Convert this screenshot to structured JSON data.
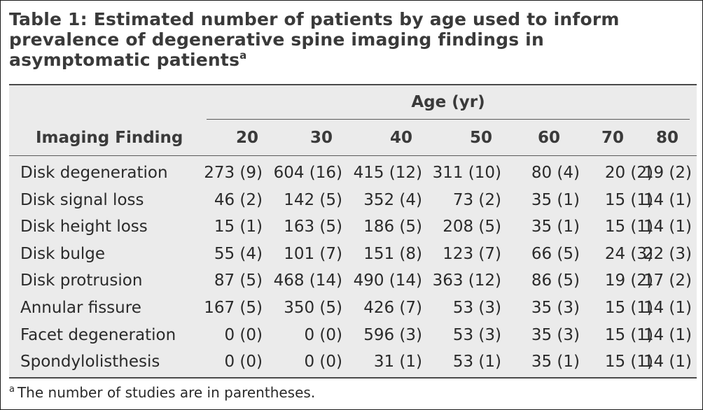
{
  "title": {
    "text": "Table 1: Estimated number of patients by age used to inform prevalence of degenerative spine imaging findings in asymptomatic patients",
    "superscript": "a"
  },
  "table": {
    "group_header": "Age (yr)",
    "first_column_header": "Imaging Finding",
    "age_columns": [
      "20",
      "30",
      "40",
      "50",
      "60",
      "70",
      "80"
    ],
    "rows": [
      {
        "finding": "Disk degeneration",
        "values": [
          "273 (9)",
          "604 (16)",
          "415 (12)",
          "311 (10)",
          "80 (4)",
          "20 (2)",
          "19 (2)"
        ]
      },
      {
        "finding": "Disk signal loss",
        "values": [
          "46 (2)",
          "142 (5)",
          "352 (4)",
          "73 (2)",
          "35 (1)",
          "15 (1)",
          "14 (1)"
        ]
      },
      {
        "finding": "Disk height loss",
        "values": [
          "15 (1)",
          "163 (5)",
          "186 (5)",
          "208 (5)",
          "35 (1)",
          "15 (1)",
          "14 (1)"
        ]
      },
      {
        "finding": "Disk bulge",
        "values": [
          "55 (4)",
          "101 (7)",
          "151 (8)",
          "123 (7)",
          "66 (5)",
          "24 (3)",
          "22 (3)"
        ]
      },
      {
        "finding": "Disk protrusion",
        "values": [
          "87 (5)",
          "468 (14)",
          "490 (14)",
          "363 (12)",
          "86 (5)",
          "19 (2)",
          "17 (2)"
        ]
      },
      {
        "finding": "Annular fissure",
        "values": [
          "167 (5)",
          "350 (5)",
          "426 (7)",
          "53 (3)",
          "35 (3)",
          "15 (1)",
          "14 (1)"
        ]
      },
      {
        "finding": "Facet degeneration",
        "values": [
          "0 (0)",
          "0 (0)",
          "596 (3)",
          "53 (3)",
          "35 (3)",
          "15 (1)",
          "14 (1)"
        ]
      },
      {
        "finding": "Spondylolisthesis",
        "values": [
          "0 (0)",
          "0 (0)",
          "31 (1)",
          "53 (1)",
          "35 (1)",
          "15 (1)",
          "14 (1)"
        ]
      }
    ]
  },
  "footnote": {
    "marker": "a",
    "text": "The number of studies are in parentheses."
  },
  "colors": {
    "table_background": "#ebebeb",
    "rule": "#4a4a4a",
    "text": "#2a2a2a"
  }
}
